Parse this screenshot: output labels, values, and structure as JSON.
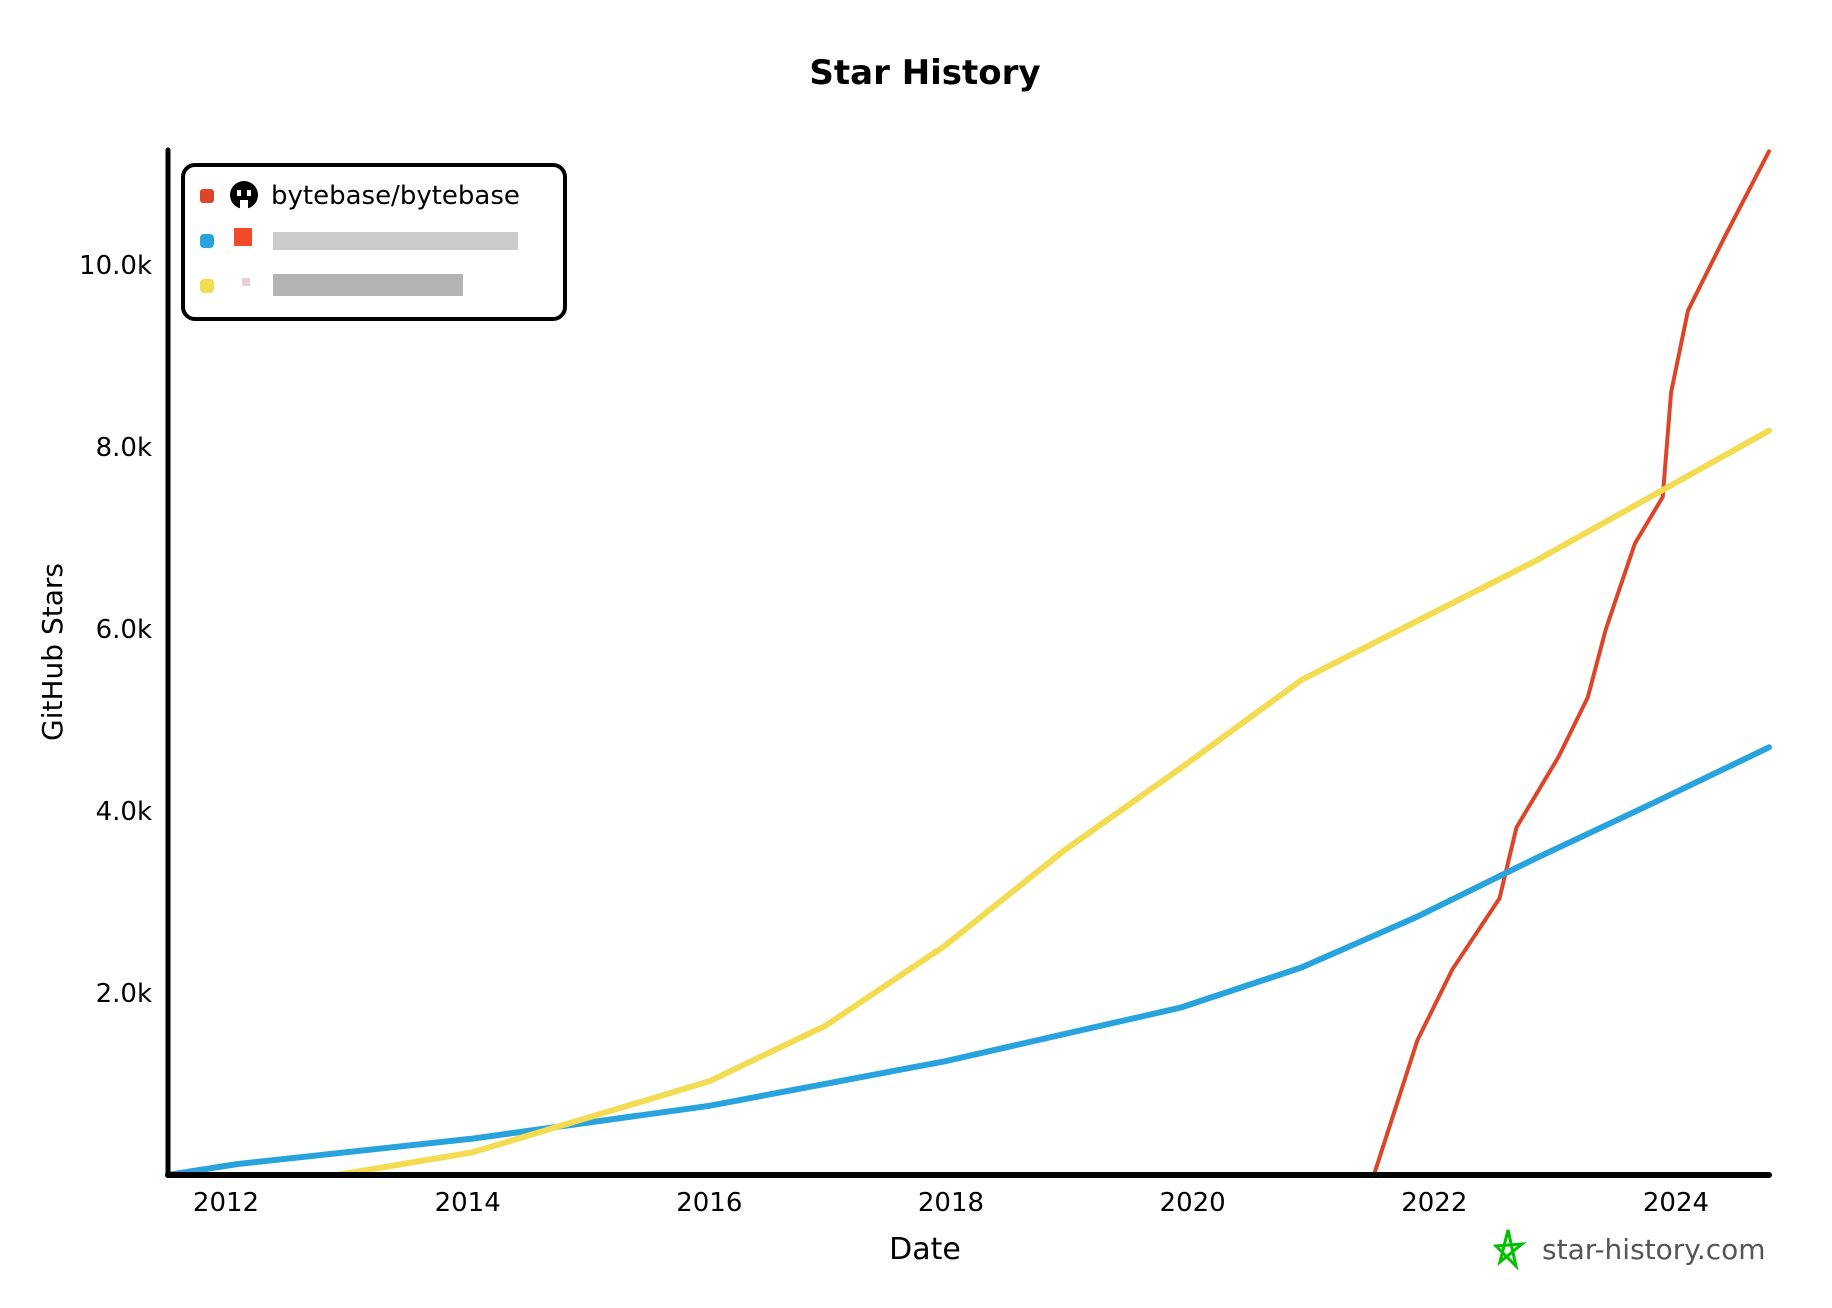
{
  "chart_data": {
    "type": "line",
    "title": "Star History",
    "xlabel": "Date",
    "ylabel": "GitHub Stars",
    "xlim": [
      2011.52,
      2024.77
    ],
    "ylim": [
      0,
      11300
    ],
    "x_ticks": [
      2012,
      2014,
      2016,
      2018,
      2020,
      2022,
      2024
    ],
    "x_tick_labels": [
      "2012",
      "2014",
      "2016",
      "2018",
      "2020",
      "2022",
      "2024"
    ],
    "y_ticks": [
      2000,
      4000,
      6000,
      8000,
      10000
    ],
    "y_tick_labels": [
      "2.0k",
      "4.0k",
      "6.0k",
      "8.0k",
      "10.0k"
    ],
    "grid": false,
    "legend_position": "top-left",
    "series": [
      {
        "name": "bytebase/bytebase",
        "color": "#dd4528",
        "icon": "github-icon",
        "x": [
          2021.5,
          2021.86,
          2022.15,
          2022.54,
          2022.68,
          2023.03,
          2023.27,
          2023.42,
          2023.66,
          2023.89,
          2023.96,
          2024.1,
          2024.4,
          2024.77
        ],
        "y": [
          0,
          1480,
          2260,
          3040,
          3820,
          4600,
          5250,
          6000,
          6940,
          7450,
          8600,
          9500,
          10300,
          11250
        ]
      },
      {
        "name": "",
        "redacted": true,
        "color": "#28a3dd",
        "x": [
          2011.52,
          2012.09,
          2014.04,
          2016.0,
          2017.95,
          2019.9,
          2020.9,
          2021.86,
          2022.84,
          2023.8,
          2024.77
        ],
        "y": [
          0,
          120,
          400,
          760,
          1250,
          1840,
          2280,
          2840,
          3480,
          4080,
          4700
        ]
      },
      {
        "name": "",
        "redacted": true,
        "color": "#f3db52",
        "x": [
          2012.92,
          2014.04,
          2015.02,
          2016.0,
          2016.96,
          2017.95,
          2018.93,
          2019.9,
          2020.9,
          2021.86,
          2022.84,
          2023.8,
          2024.77
        ],
        "y": [
          0,
          250,
          640,
          1030,
          1640,
          2520,
          3560,
          4470,
          5440,
          6090,
          6750,
          7460,
          8180
        ]
      }
    ]
  },
  "watermark": {
    "text": "star-history.com",
    "color": "#00c000"
  }
}
